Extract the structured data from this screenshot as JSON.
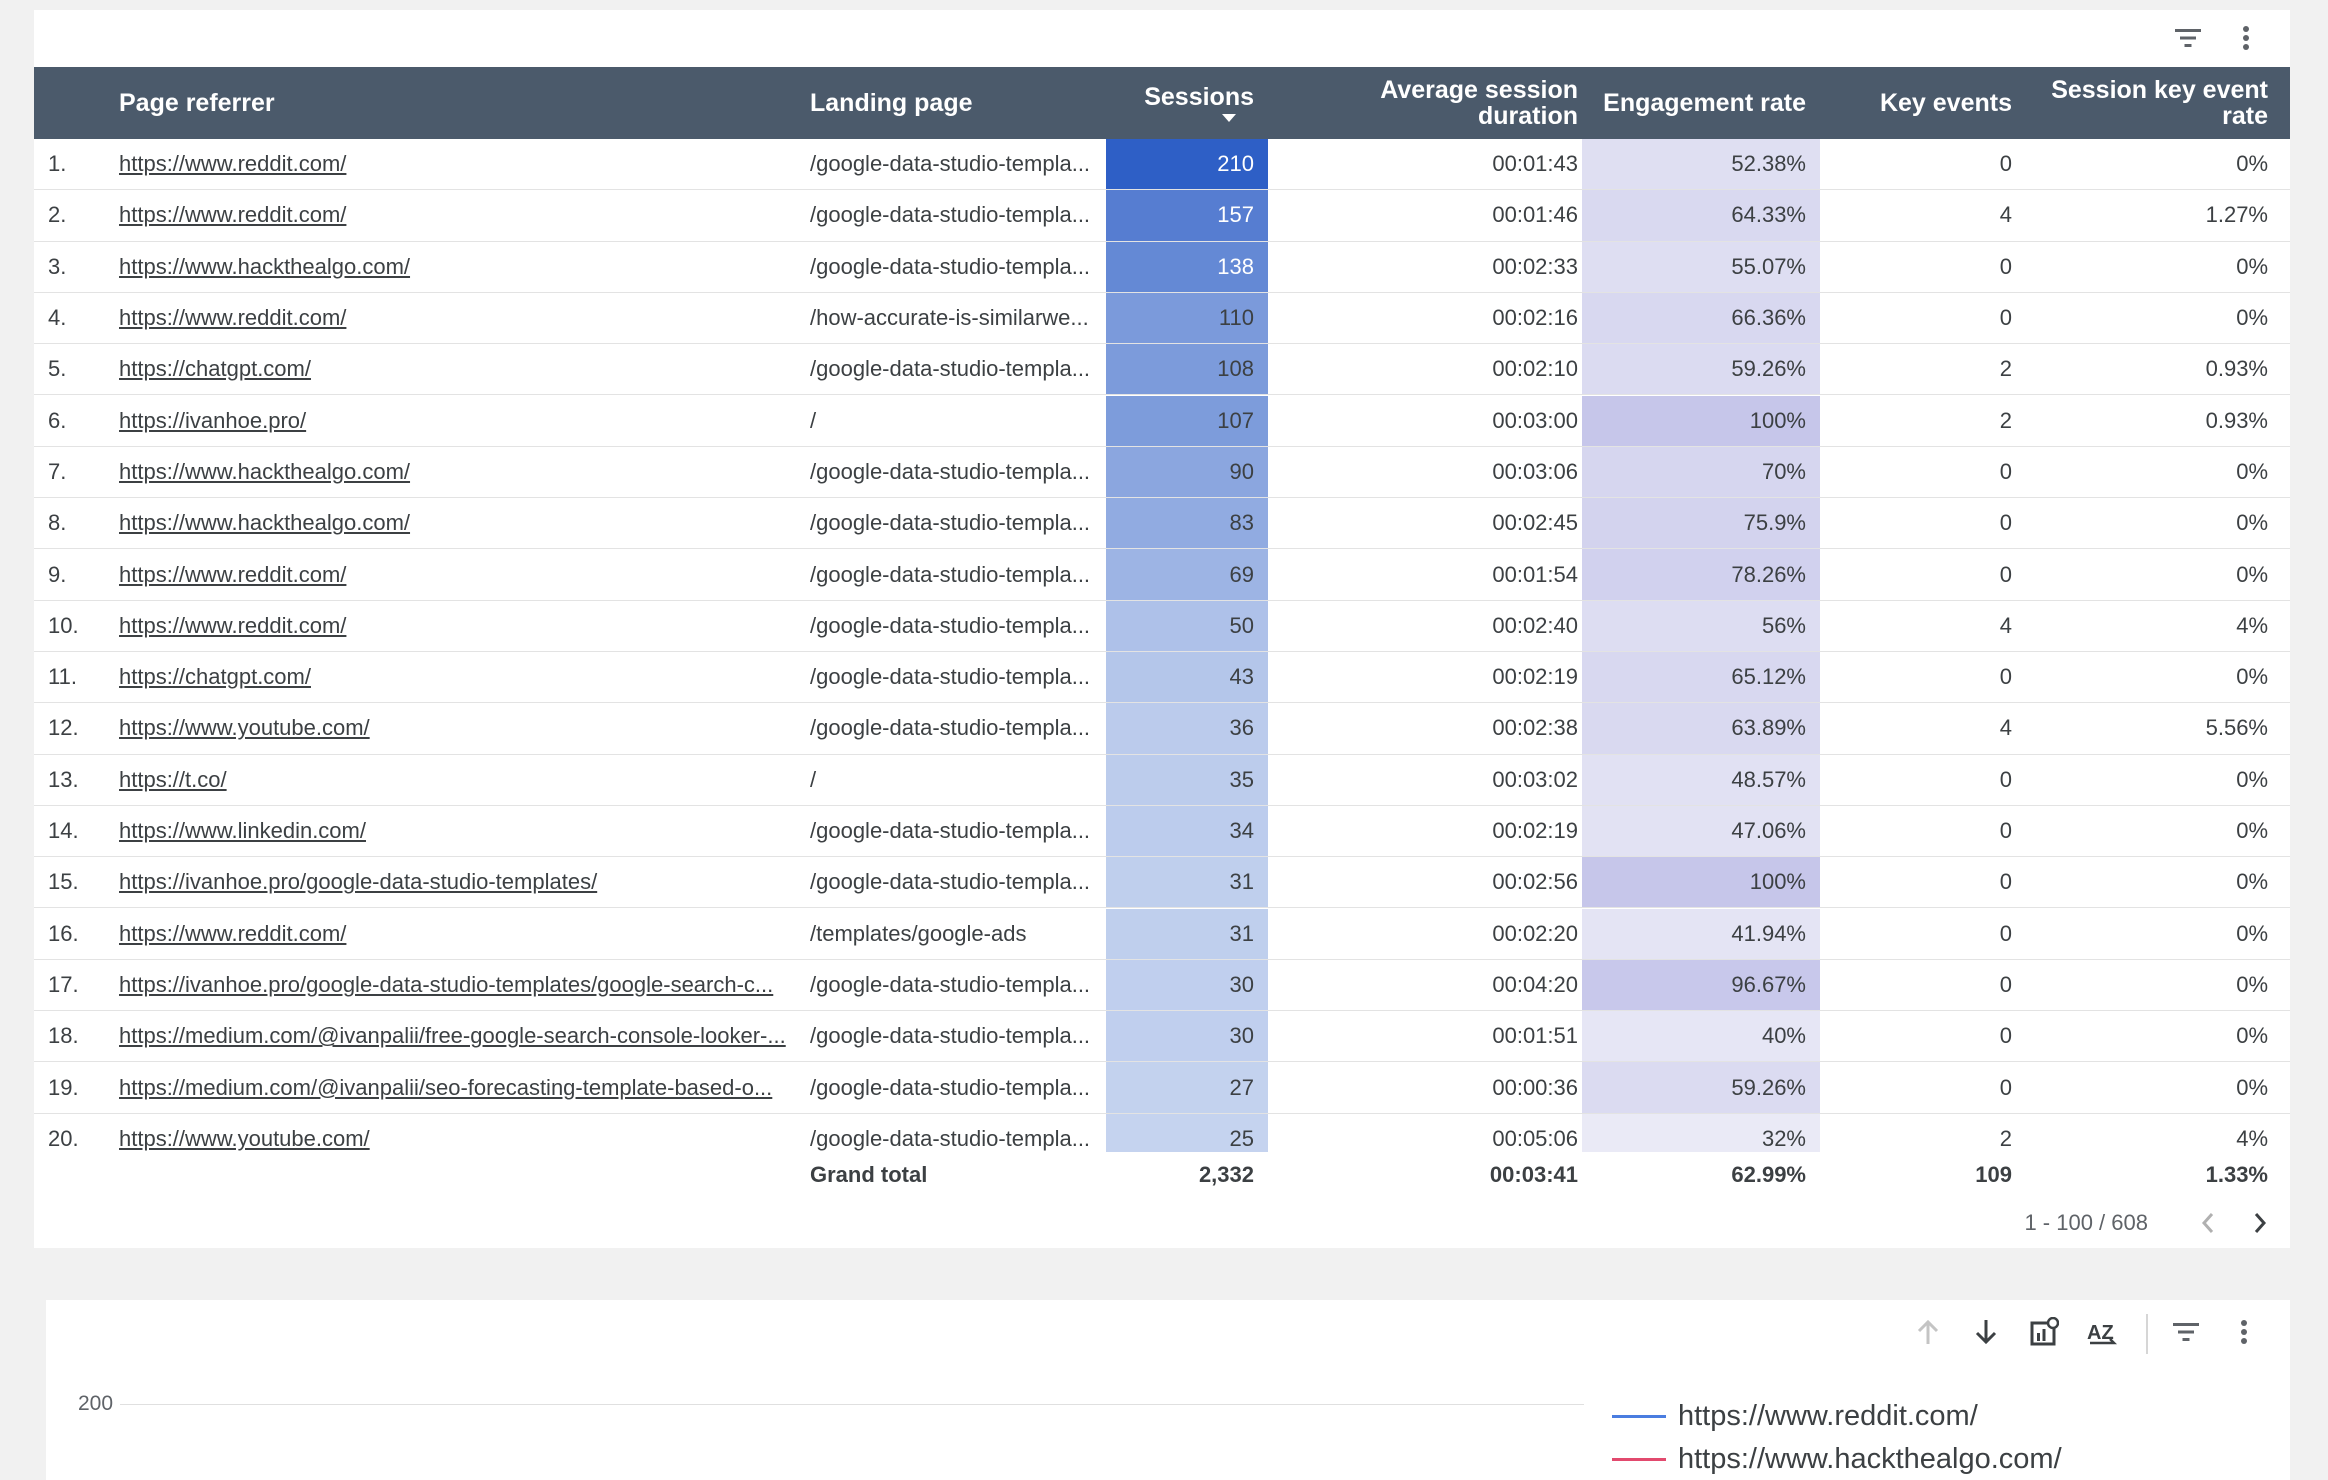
{
  "table": {
    "headers": {
      "page_referrer": "Page referrer",
      "landing_page": "Landing page",
      "sessions": "Sessions",
      "avg_duration_1": "Average session",
      "avg_duration_2": "duration",
      "engagement_rate": "Engagement rate",
      "key_events": "Key events",
      "session_key_event_rate": "Session key event rate"
    },
    "rows": [
      {
        "num": "1.",
        "ref": "https://www.reddit.com/",
        "land": "/google-data-studio-templa...",
        "sess": "210",
        "dur": "00:01:43",
        "eng": "52.38%",
        "key": "0",
        "ser": "0%",
        "sess_v": 210,
        "eng_v": 52.38
      },
      {
        "num": "2.",
        "ref": "https://www.reddit.com/",
        "land": "/google-data-studio-templa...",
        "sess": "157",
        "dur": "00:01:46",
        "eng": "64.33%",
        "key": "4",
        "ser": "1.27%",
        "sess_v": 157,
        "eng_v": 64.33
      },
      {
        "num": "3.",
        "ref": "https://www.hackthealgo.com/",
        "land": "/google-data-studio-templa...",
        "sess": "138",
        "dur": "00:02:33",
        "eng": "55.07%",
        "key": "0",
        "ser": "0%",
        "sess_v": 138,
        "eng_v": 55.07
      },
      {
        "num": "4.",
        "ref": "https://www.reddit.com/",
        "land": "/how-accurate-is-similarwe...",
        "sess": "110",
        "dur": "00:02:16",
        "eng": "66.36%",
        "key": "0",
        "ser": "0%",
        "sess_v": 110,
        "eng_v": 66.36
      },
      {
        "num": "5.",
        "ref": "https://chatgpt.com/",
        "land": "/google-data-studio-templa...",
        "sess": "108",
        "dur": "00:02:10",
        "eng": "59.26%",
        "key": "2",
        "ser": "0.93%",
        "sess_v": 108,
        "eng_v": 59.26
      },
      {
        "num": "6.",
        "ref": "https://ivanhoe.pro/",
        "land": "/",
        "sess": "107",
        "dur": "00:03:00",
        "eng": "100%",
        "key": "2",
        "ser": "0.93%",
        "sess_v": 107,
        "eng_v": 100
      },
      {
        "num": "7.",
        "ref": "https://www.hackthealgo.com/",
        "land": "/google-data-studio-templa...",
        "sess": "90",
        "dur": "00:03:06",
        "eng": "70%",
        "key": "0",
        "ser": "0%",
        "sess_v": 90,
        "eng_v": 70
      },
      {
        "num": "8.",
        "ref": "https://www.hackthealgo.com/",
        "land": "/google-data-studio-templa...",
        "sess": "83",
        "dur": "00:02:45",
        "eng": "75.9%",
        "key": "0",
        "ser": "0%",
        "sess_v": 83,
        "eng_v": 75.9
      },
      {
        "num": "9.",
        "ref": "https://www.reddit.com/",
        "land": "/google-data-studio-templa...",
        "sess": "69",
        "dur": "00:01:54",
        "eng": "78.26%",
        "key": "0",
        "ser": "0%",
        "sess_v": 69,
        "eng_v": 78.26
      },
      {
        "num": "10.",
        "ref": "https://www.reddit.com/",
        "land": "/google-data-studio-templa...",
        "sess": "50",
        "dur": "00:02:40",
        "eng": "56%",
        "key": "4",
        "ser": "4%",
        "sess_v": 50,
        "eng_v": 56
      },
      {
        "num": "11.",
        "ref": "https://chatgpt.com/",
        "land": "/google-data-studio-templa...",
        "sess": "43",
        "dur": "00:02:19",
        "eng": "65.12%",
        "key": "0",
        "ser": "0%",
        "sess_v": 43,
        "eng_v": 65.12
      },
      {
        "num": "12.",
        "ref": "https://www.youtube.com/",
        "land": "/google-data-studio-templa...",
        "sess": "36",
        "dur": "00:02:38",
        "eng": "63.89%",
        "key": "4",
        "ser": "5.56%",
        "sess_v": 36,
        "eng_v": 63.89
      },
      {
        "num": "13.",
        "ref": "https://t.co/",
        "land": "/",
        "sess": "35",
        "dur": "00:03:02",
        "eng": "48.57%",
        "key": "0",
        "ser": "0%",
        "sess_v": 35,
        "eng_v": 48.57
      },
      {
        "num": "14.",
        "ref": "https://www.linkedin.com/",
        "land": "/google-data-studio-templa...",
        "sess": "34",
        "dur": "00:02:19",
        "eng": "47.06%",
        "key": "0",
        "ser": "0%",
        "sess_v": 34,
        "eng_v": 47.06
      },
      {
        "num": "15.",
        "ref": "https://ivanhoe.pro/google-data-studio-templates/",
        "land": "/google-data-studio-templa...",
        "sess": "31",
        "dur": "00:02:56",
        "eng": "100%",
        "key": "0",
        "ser": "0%",
        "sess_v": 31,
        "eng_v": 100
      },
      {
        "num": "16.",
        "ref": "https://www.reddit.com/",
        "land": "/templates/google-ads",
        "sess": "31",
        "dur": "00:02:20",
        "eng": "41.94%",
        "key": "0",
        "ser": "0%",
        "sess_v": 31,
        "eng_v": 41.94
      },
      {
        "num": "17.",
        "ref": "https://ivanhoe.pro/google-data-studio-templates/google-search-c...",
        "land": "/google-data-studio-templa...",
        "sess": "30",
        "dur": "00:04:20",
        "eng": "96.67%",
        "key": "0",
        "ser": "0%",
        "sess_v": 30,
        "eng_v": 96.67
      },
      {
        "num": "18.",
        "ref": "https://medium.com/@ivanpalii/free-google-search-console-looker-...",
        "land": "/google-data-studio-templa...",
        "sess": "30",
        "dur": "00:01:51",
        "eng": "40%",
        "key": "0",
        "ser": "0%",
        "sess_v": 30,
        "eng_v": 40
      },
      {
        "num": "19.",
        "ref": "https://medium.com/@ivanpalii/seo-forecasting-template-based-o...",
        "land": "/google-data-studio-templa...",
        "sess": "27",
        "dur": "00:00:36",
        "eng": "59.26%",
        "key": "0",
        "ser": "0%",
        "sess_v": 27,
        "eng_v": 59.26
      },
      {
        "num": "20.",
        "ref": "https://www.youtube.com/",
        "land": "/google-data-studio-templa...",
        "sess": "25",
        "dur": "00:05:06",
        "eng": "32%",
        "key": "2",
        "ser": "4%",
        "sess_v": 25,
        "eng_v": 32
      }
    ],
    "grand_total": {
      "label": "Grand total",
      "sessions": "2,332",
      "duration": "00:03:41",
      "engagement": "62.99%",
      "key_events": "109",
      "key_event_rate": "1.33%"
    },
    "pager": {
      "range": "1 - 100 / 608"
    },
    "colors": {
      "header_bg": "#4b5a6b",
      "sessions_heat": "#2e5fc6",
      "engagement_heat": "#bcbce4"
    }
  },
  "chart": {
    "y_tick": "200",
    "legend": [
      {
        "label": "https://www.reddit.com/",
        "color": "#4a7de0"
      },
      {
        "label": "https://www.hackthealgo.com/",
        "color": "#e24a6e"
      }
    ]
  },
  "icons": {
    "filter": "filter-icon",
    "more": "more-vert-icon",
    "sort_up": "arrow-up-icon",
    "sort_down": "arrow-down-icon",
    "chart_settings": "chart-settings-icon",
    "sort_az": "sort-az-icon"
  }
}
